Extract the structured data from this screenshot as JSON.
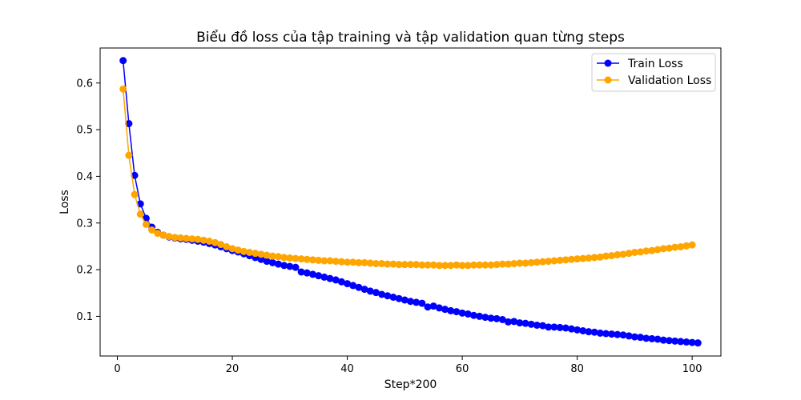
{
  "chart_data": {
    "type": "line",
    "title": "Biểu đồ loss của tập training và tập validation quan từng steps",
    "xlabel": "Step*200",
    "ylabel": "Loss",
    "xlim": [
      -3,
      105
    ],
    "ylim": [
      0.015,
      0.675
    ],
    "xticks": [
      0,
      20,
      40,
      60,
      80,
      100
    ],
    "yticks": [
      0.1,
      0.2,
      0.3,
      0.4,
      0.5,
      0.6
    ],
    "grid": false,
    "legend": "top-right",
    "series": [
      {
        "name": "Train Loss",
        "color": "#0000ff",
        "values": [
          0.648,
          0.513,
          0.402,
          0.341,
          0.31,
          0.291,
          0.28,
          0.274,
          0.27,
          0.268,
          0.266,
          0.265,
          0.263,
          0.261,
          0.259,
          0.256,
          0.253,
          0.249,
          0.245,
          0.241,
          0.238,
          0.234,
          0.23,
          0.226,
          0.222,
          0.218,
          0.215,
          0.212,
          0.209,
          0.207,
          0.205,
          0.195,
          0.193,
          0.19,
          0.187,
          0.184,
          0.181,
          0.178,
          0.174,
          0.17,
          0.166,
          0.162,
          0.158,
          0.154,
          0.151,
          0.147,
          0.144,
          0.141,
          0.138,
          0.135,
          0.132,
          0.13,
          0.128,
          0.12,
          0.122,
          0.118,
          0.115,
          0.112,
          0.11,
          0.107,
          0.105,
          0.102,
          0.1,
          0.098,
          0.096,
          0.095,
          0.093,
          0.088,
          0.089,
          0.086,
          0.085,
          0.083,
          0.081,
          0.08,
          0.077,
          0.077,
          0.076,
          0.075,
          0.073,
          0.071,
          0.069,
          0.067,
          0.066,
          0.064,
          0.063,
          0.062,
          0.061,
          0.06,
          0.058,
          0.056,
          0.055,
          0.053,
          0.052,
          0.051,
          0.049,
          0.048,
          0.047,
          0.046,
          0.045,
          0.044,
          0.043
        ]
      },
      {
        "name": "Validation Loss",
        "color": "#ffa500",
        "values": [
          0.587,
          0.445,
          0.361,
          0.319,
          0.297,
          0.285,
          0.278,
          0.274,
          0.271,
          0.269,
          0.268,
          0.267,
          0.266,
          0.265,
          0.263,
          0.261,
          0.258,
          0.254,
          0.249,
          0.245,
          0.242,
          0.239,
          0.237,
          0.235,
          0.233,
          0.231,
          0.229,
          0.228,
          0.226,
          0.225,
          0.224,
          0.223,
          0.222,
          0.221,
          0.22,
          0.219,
          0.219,
          0.218,
          0.217,
          0.216,
          0.216,
          0.215,
          0.215,
          0.214,
          0.213,
          0.213,
          0.212,
          0.212,
          0.211,
          0.211,
          0.211,
          0.211,
          0.21,
          0.21,
          0.21,
          0.209,
          0.209,
          0.209,
          0.21,
          0.209,
          0.209,
          0.21,
          0.21,
          0.21,
          0.21,
          0.211,
          0.212,
          0.212,
          0.213,
          0.214,
          0.214,
          0.215,
          0.216,
          0.217,
          0.218,
          0.219,
          0.22,
          0.221,
          0.222,
          0.223,
          0.224,
          0.225,
          0.226,
          0.227,
          0.229,
          0.23,
          0.232,
          0.233,
          0.235,
          0.237,
          0.238,
          0.24,
          0.241,
          0.243,
          0.245,
          0.246,
          0.248,
          0.249,
          0.251,
          0.253
        ]
      }
    ]
  }
}
